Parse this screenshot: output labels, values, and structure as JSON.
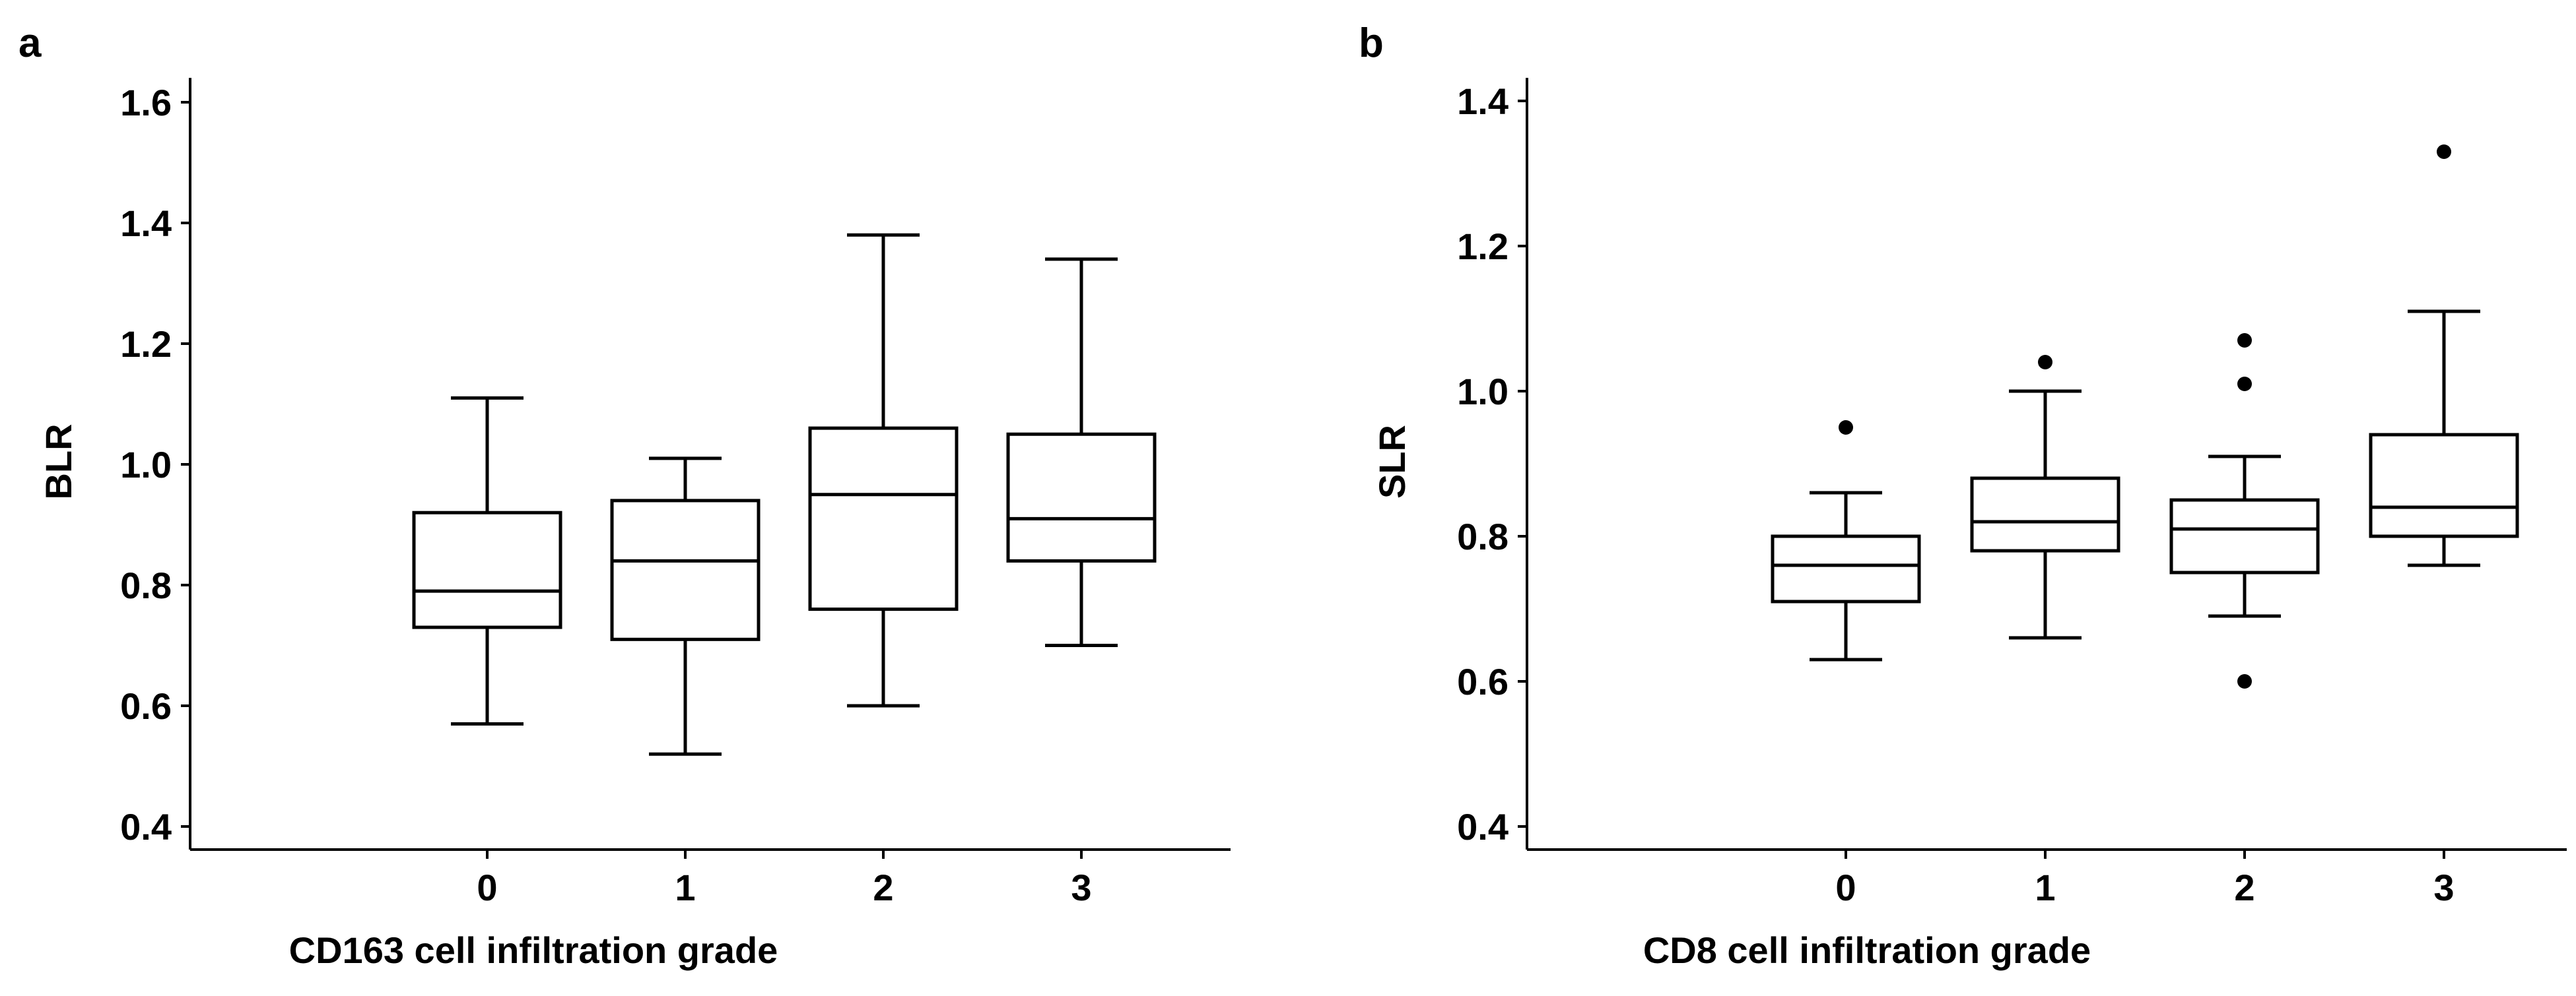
{
  "colors": {
    "ink": "#000000",
    "background": "#ffffff"
  },
  "chart_data": [
    {
      "type": "box",
      "panel_label": "a",
      "xlabel": "CD163 cell infiltration grade",
      "ylabel": "BLR",
      "ylim": [
        0.4,
        1.6
      ],
      "yticks": [
        0.4,
        0.6,
        0.8,
        1.0,
        1.2,
        1.4,
        1.6
      ],
      "ytick_labels": [
        "0.4",
        "0.6",
        "0.8",
        "1.0",
        "1.2",
        "1.4",
        "1.6"
      ],
      "categories": [
        "0",
        "1",
        "2",
        "3"
      ],
      "boxes": [
        {
          "category": "0",
          "whisker_low": 0.57,
          "q1": 0.73,
          "median": 0.79,
          "q3": 0.92,
          "whisker_high": 1.11,
          "outliers": []
        },
        {
          "category": "1",
          "whisker_low": 0.52,
          "q1": 0.71,
          "median": 0.84,
          "q3": 0.94,
          "whisker_high": 1.01,
          "outliers": []
        },
        {
          "category": "2",
          "whisker_low": 0.6,
          "q1": 0.76,
          "median": 0.95,
          "q3": 1.06,
          "whisker_high": 1.38,
          "outliers": []
        },
        {
          "category": "3",
          "whisker_low": 0.7,
          "q1": 0.84,
          "median": 0.91,
          "q3": 1.05,
          "whisker_high": 1.34,
          "outliers": []
        }
      ],
      "grid": false,
      "legend": "none"
    },
    {
      "type": "box",
      "panel_label": "b",
      "xlabel": "CD8 cell infiltration grade",
      "ylabel": "SLR",
      "ylim": [
        0.4,
        1.4
      ],
      "yticks": [
        0.4,
        0.6,
        0.8,
        1.0,
        1.2,
        1.4
      ],
      "ytick_labels": [
        "0.4",
        "0.6",
        "0.8",
        "1.0",
        "1.2",
        "1.4"
      ],
      "categories": [
        "0",
        "1",
        "2",
        "3"
      ],
      "boxes": [
        {
          "category": "0",
          "whisker_low": 0.63,
          "q1": 0.71,
          "median": 0.76,
          "q3": 0.8,
          "whisker_high": 0.86,
          "outliers": [
            0.95
          ]
        },
        {
          "category": "1",
          "whisker_low": 0.66,
          "q1": 0.78,
          "median": 0.82,
          "q3": 0.88,
          "whisker_high": 1.0,
          "outliers": [
            1.04
          ]
        },
        {
          "category": "2",
          "whisker_low": 0.69,
          "q1": 0.75,
          "median": 0.81,
          "q3": 0.85,
          "whisker_high": 0.91,
          "outliers": [
            1.07,
            1.01,
            0.6
          ]
        },
        {
          "category": "3",
          "whisker_low": 0.76,
          "q1": 0.8,
          "median": 0.84,
          "q3": 0.94,
          "whisker_high": 1.11,
          "outliers": [
            1.33
          ]
        }
      ],
      "grid": false,
      "legend": "none"
    }
  ]
}
